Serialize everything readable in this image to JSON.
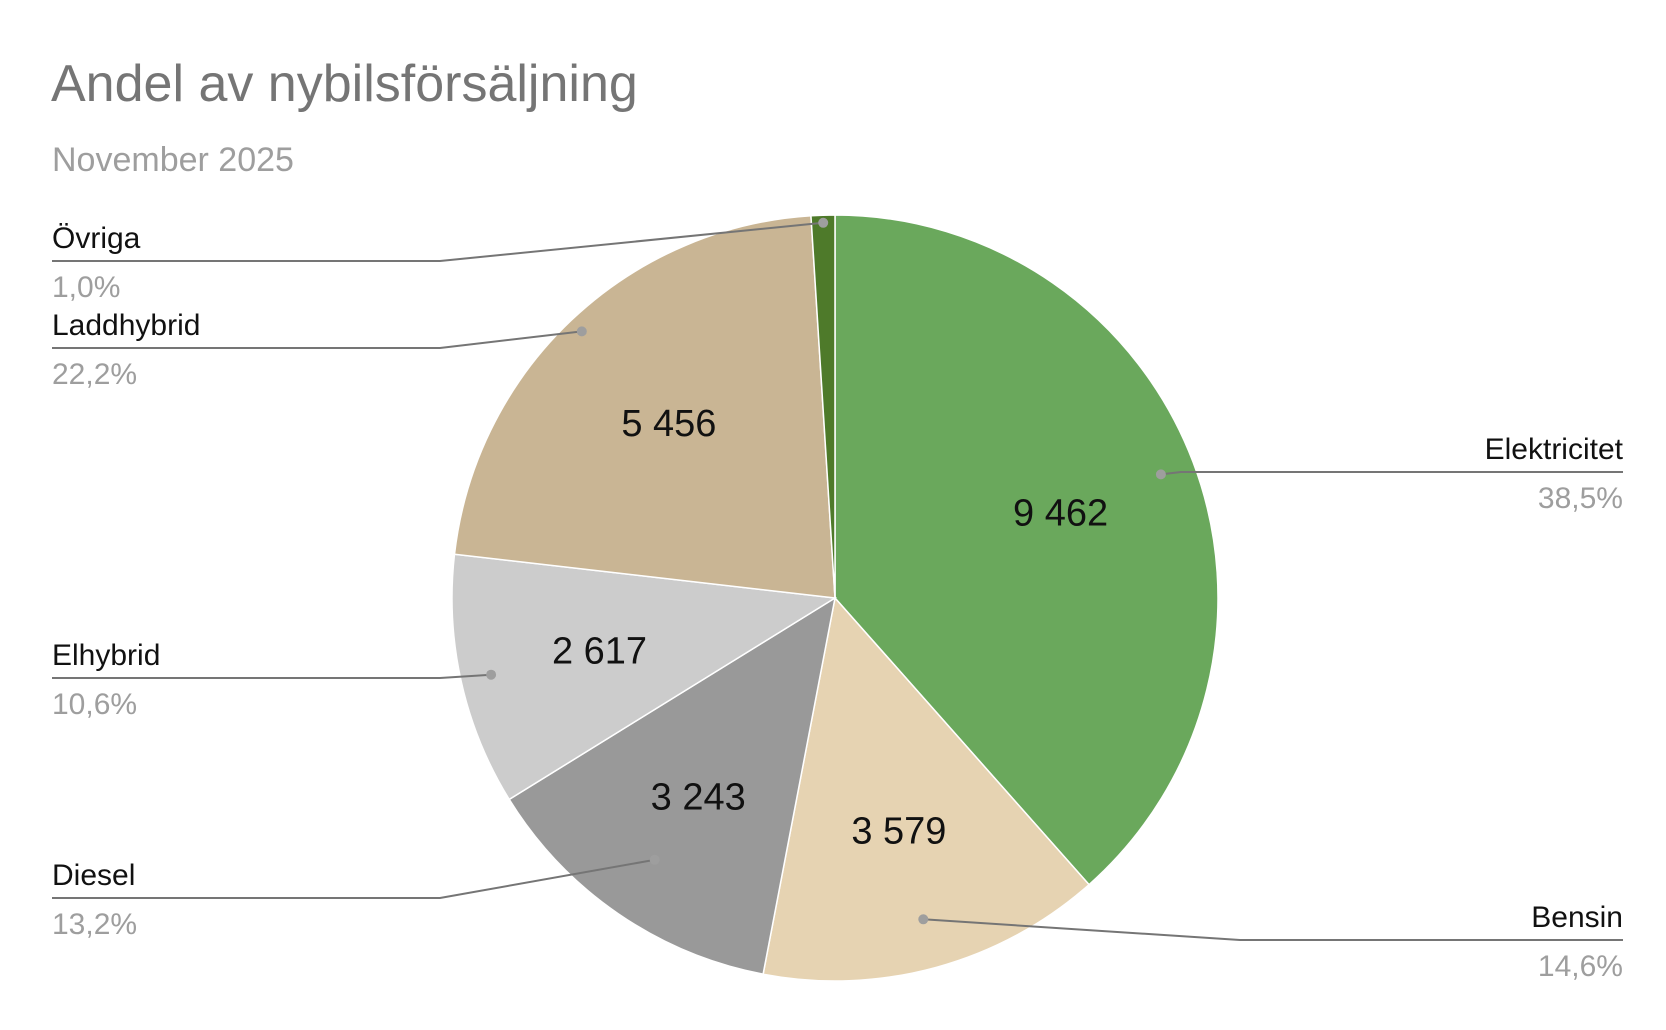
{
  "chart_data": {
    "type": "pie",
    "title": "Andel av nybilsförsäljning",
    "subtitle": "November 2025",
    "slices": [
      {
        "name": "Elektricitet",
        "value": 9462,
        "value_label": "9 462",
        "percent_label": "38,5%",
        "color": "#6aa85c"
      },
      {
        "name": "Bensin",
        "value": 3579,
        "value_label": "3 579",
        "percent_label": "14,6%",
        "color": "#e6d3b2"
      },
      {
        "name": "Diesel",
        "value": 3243,
        "value_label": "3 243",
        "percent_label": "13,2%",
        "color": "#999999"
      },
      {
        "name": "Elhybrid",
        "value": 2617,
        "value_label": "2 617",
        "percent_label": "10,6%",
        "color": "#cccccc"
      },
      {
        "name": "Laddhybrid",
        "value": 5456,
        "value_label": "5 456",
        "percent_label": "22,2%",
        "color": "#c9b594"
      },
      {
        "name": "Övriga",
        "value": 246,
        "value_label": "",
        "percent_label": "1,0%",
        "color": "#4e7a2a"
      }
    ],
    "start_angle_deg": 0,
    "direction": "clockwise",
    "legend": "callout labels on left and right"
  }
}
